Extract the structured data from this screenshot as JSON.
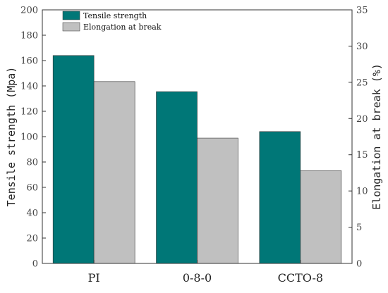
{
  "chart_data": {
    "type": "bar",
    "categories": [
      "PI",
      "0-8-0",
      "CCTO-8"
    ],
    "series": [
      {
        "name": "Tensile strength",
        "axis": "left",
        "values": [
          164,
          135.5,
          104
        ],
        "color": "#007777"
      },
      {
        "name": "Elongation at break",
        "axis": "right",
        "values": [
          25.1,
          17.3,
          12.8
        ],
        "color": "#c0c0c0"
      }
    ],
    "ylabel": "Tensile strength (Mpa)",
    "ylim": [
      0,
      200
    ],
    "yticks": [
      0,
      20,
      40,
      60,
      80,
      100,
      120,
      140,
      160,
      180,
      200
    ],
    "y2label": "Elongation at break (%)",
    "y2lim": [
      0,
      35
    ],
    "y2ticks": [
      0,
      5,
      10,
      15,
      20,
      25,
      30,
      35
    ],
    "legend_position": "top-left",
    "grid": false
  }
}
